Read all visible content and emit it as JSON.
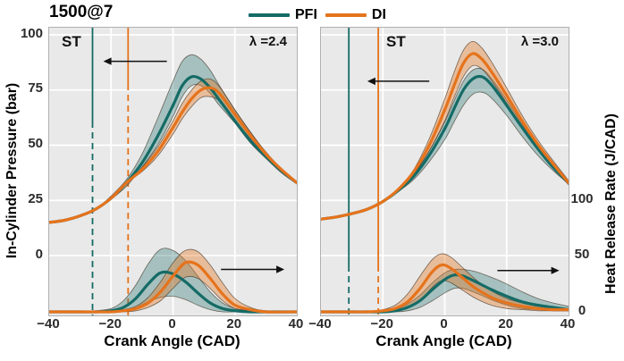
{
  "title": "1500@7",
  "colors": {
    "PFI": "#156b66",
    "DI": "#e5731c",
    "grid": "#ffffff",
    "plot_bg": "#e9e9e9",
    "band_edge": "rgba(55,42,25,0.65)",
    "arrow": "#111111"
  },
  "legend": [
    {
      "label": "PFI",
      "series": "PFI"
    },
    {
      "label": "DI",
      "series": "DI"
    }
  ],
  "axes": {
    "x": {
      "label": "Crank Angle (CAD)",
      "range": [
        -40,
        40
      ],
      "ticks": [
        "−40",
        "−20",
        "0",
        "20",
        "40"
      ],
      "tick_values": [
        -40,
        -20,
        0,
        20,
        40
      ]
    },
    "y_left": {
      "label": "In-Cylinder Pressure (bar)",
      "ticks": [
        "100",
        "75",
        "50",
        "25",
        "0"
      ],
      "tick_values": [
        100,
        75,
        50,
        25,
        0
      ]
    },
    "y_right": {
      "label": "Heat Release Rate (J/CAD)",
      "ticks": [
        "100",
        "50",
        "0"
      ],
      "tick_values": [
        100,
        50,
        0
      ]
    }
  },
  "chart_data": [
    {
      "type": "line",
      "annotation": "λ =2.4",
      "st_label": "ST",
      "st_label_x": 14,
      "st_lines": [
        {
          "series": "PFI",
          "x": -26,
          "solid_to": 105
        },
        {
          "series": "DI",
          "x": -14.5,
          "solid_to": 63
        }
      ],
      "pressure": [
        {
          "series": "PFI",
          "x": [
            -40,
            -35,
            -30,
            -25,
            -20,
            -15,
            -10,
            -5,
            0,
            3,
            6,
            9,
            12,
            15,
            20,
            25,
            30,
            35,
            40
          ],
          "mean": [
            15,
            16,
            18,
            21,
            26,
            33,
            42,
            54,
            68,
            77,
            81,
            80,
            76,
            70.5,
            61,
            52,
            45,
            38.5,
            33
          ],
          "upper": [
            15,
            16,
            18,
            21,
            27,
            34.5,
            46,
            62,
            79,
            88,
            91,
            89,
            84,
            77,
            66,
            56,
            46.5,
            39.5,
            33.5
          ],
          "lower": [
            15,
            16,
            18,
            21,
            25.5,
            31.5,
            40,
            50,
            63,
            72,
            77,
            77,
            73.5,
            68,
            60,
            51,
            44,
            37.5,
            32.5
          ]
        },
        {
          "series": "DI",
          "x": [
            -40,
            -35,
            -30,
            -25,
            -20,
            -15,
            -10,
            -5,
            0,
            3,
            6,
            9,
            12,
            15,
            20,
            25,
            30,
            35,
            40
          ],
          "mean": [
            15,
            16,
            18,
            21,
            26,
            33,
            39,
            47,
            58,
            65,
            71,
            75,
            76,
            73.5,
            64,
            54.5,
            46,
            39,
            33
          ],
          "upper": [
            15,
            16,
            18,
            21,
            26,
            33,
            40,
            49,
            61,
            69,
            75,
            79,
            80,
            76.5,
            66,
            56,
            47,
            39.5,
            33.5
          ],
          "lower": [
            15,
            16,
            18,
            21,
            26,
            33,
            38,
            45,
            55,
            62,
            67.5,
            71.5,
            72,
            70,
            61.5,
            53,
            45,
            38,
            32.5
          ]
        }
      ],
      "hrr": [
        {
          "series": "PFI",
          "x": [
            -40,
            -30,
            -25,
            -20,
            -16,
            -12,
            -8,
            -4,
            0,
            4,
            8,
            12,
            16,
            20,
            25,
            30,
            40
          ],
          "mean": [
            0,
            0,
            0,
            1,
            4,
            12,
            25,
            35,
            34,
            27,
            17,
            8,
            3,
            1,
            0,
            0,
            0
          ],
          "upper": [
            0,
            0,
            1,
            3,
            10,
            24,
            43,
            56,
            55,
            46,
            32,
            18,
            8,
            3,
            1,
            0,
            0
          ],
          "lower": [
            0,
            0,
            0,
            0,
            1,
            4,
            9,
            13,
            14,
            11,
            6,
            2,
            0,
            0,
            0,
            0,
            0
          ]
        },
        {
          "series": "DI",
          "x": [
            -40,
            -30,
            -25,
            -20,
            -16,
            -12,
            -8,
            -4,
            0,
            4,
            8,
            12,
            16,
            20,
            25,
            30,
            40
          ],
          "mean": [
            0,
            0,
            0,
            0,
            1,
            3,
            8,
            18,
            32,
            44,
            42,
            30,
            16,
            6,
            2,
            0,
            0
          ],
          "upper": [
            0,
            0,
            0,
            0,
            2,
            5,
            13,
            27,
            44,
            55,
            54,
            42,
            26,
            12,
            4,
            1,
            0
          ],
          "lower": [
            0,
            0,
            0,
            0,
            0,
            1,
            4,
            10,
            21,
            31,
            30,
            21,
            10,
            3,
            1,
            0,
            0
          ]
        }
      ],
      "arrows": [
        {
          "axis": "pressure",
          "y": 88,
          "from": -2,
          "to": -22.5
        },
        {
          "axis": "hrr",
          "y": 38,
          "from": 15.5,
          "to": 36
        }
      ]
    },
    {
      "type": "line",
      "annotation": "λ =3.0",
      "st_label": "ST",
      "st_label_x": 73,
      "st_lines": [
        {
          "series": "PFI",
          "x": -31,
          "solid_to": 266
        },
        {
          "series": "DI",
          "x": -21.5,
          "solid_to": 266
        }
      ],
      "pressure": [
        {
          "series": "PFI",
          "x": [
            -40,
            -35,
            -30,
            -25,
            -20,
            -15,
            -10,
            -5,
            0,
            3,
            6,
            9,
            12,
            15,
            20,
            25,
            30,
            35,
            40
          ],
          "mean": [
            16.5,
            17.5,
            19,
            21,
            24.5,
            29.5,
            36,
            45.5,
            57.5,
            66.5,
            75,
            80,
            81,
            77.5,
            68,
            58,
            48.5,
            40,
            33
          ],
          "upper": [
            16.5,
            17.5,
            19,
            21,
            24.5,
            30,
            37,
            47.5,
            60.5,
            70,
            79,
            84,
            84.5,
            80.5,
            70.5,
            59.5,
            49.5,
            41,
            33.5
          ],
          "lower": [
            16.5,
            17.5,
            19,
            21,
            24.5,
            29,
            34.5,
            42.5,
            52.5,
            60.5,
            68,
            73,
            74,
            71.5,
            63.5,
            54,
            45.5,
            38.5,
            32.5
          ]
        },
        {
          "series": "DI",
          "x": [
            -40,
            -35,
            -30,
            -25,
            -20,
            -15,
            -10,
            -5,
            0,
            3,
            6,
            9,
            12,
            15,
            20,
            25,
            30,
            35,
            40
          ],
          "mean": [
            16.5,
            17.5,
            19,
            21,
            24.5,
            30,
            38,
            50,
            66,
            77,
            87,
            91.5,
            89,
            83.5,
            72.5,
            61,
            50.5,
            41.5,
            33
          ],
          "upper": [
            16.5,
            17.5,
            19,
            21,
            24.5,
            30,
            39,
            53,
            71,
            83,
            93,
            97,
            94,
            88,
            76,
            63.5,
            52.5,
            43,
            34
          ],
          "lower": [
            16.5,
            17.5,
            19,
            21,
            24.5,
            30,
            37,
            47.5,
            61,
            71.5,
            81,
            86,
            84.5,
            79.5,
            69,
            58,
            48.5,
            40,
            32
          ]
        }
      ],
      "hrr": [
        {
          "series": "PFI",
          "x": [
            -40,
            -30,
            -25,
            -20,
            -16,
            -12,
            -8,
            -4,
            0,
            3,
            6,
            10,
            15,
            20,
            25,
            30,
            35,
            40
          ],
          "mean": [
            0,
            0,
            0,
            0,
            1,
            4,
            10,
            20,
            29,
            33,
            32,
            27,
            20,
            14,
            9,
            6,
            4,
            2
          ],
          "upper": [
            0,
            0,
            0,
            1,
            2,
            7,
            15,
            26,
            35,
            38,
            38,
            36,
            31,
            25,
            18,
            12,
            8,
            5
          ],
          "lower": [
            0,
            0,
            0,
            0,
            0,
            1,
            4,
            10,
            17,
            21,
            21,
            17,
            11,
            6,
            3,
            2,
            1,
            1
          ]
        },
        {
          "series": "DI",
          "x": [
            -40,
            -30,
            -25,
            -20,
            -16,
            -12,
            -8,
            -4,
            -1,
            2,
            6,
            10,
            15,
            20,
            25,
            30,
            35,
            40
          ],
          "mean": [
            0,
            0,
            0,
            1,
            3,
            9,
            21,
            36,
            42,
            39,
            30,
            21,
            13,
            8,
            5,
            3,
            2,
            2
          ],
          "upper": [
            0,
            0,
            0,
            2,
            6,
            16,
            32,
            47,
            52,
            49,
            39,
            29,
            19,
            12,
            8,
            5,
            4,
            3
          ],
          "lower": [
            0,
            0,
            0,
            0,
            1,
            3,
            10,
            22,
            28,
            26,
            19,
            12,
            6,
            3,
            2,
            1,
            1,
            1
          ]
        }
      ],
      "arrows": [
        {
          "axis": "pressure",
          "y": 79,
          "from": -5,
          "to": -25
        },
        {
          "axis": "hrr",
          "y": 37,
          "from": 17,
          "to": 37
        }
      ]
    }
  ]
}
